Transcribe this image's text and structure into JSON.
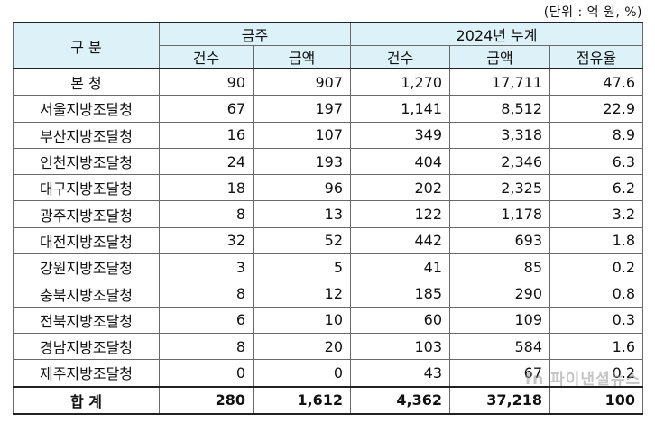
{
  "unit_note": "(단위 : 억 원, %)",
  "header": {
    "category": "구 분",
    "group_this_week": "금주",
    "group_2024_total": "2024년 누계",
    "col_count": "건수",
    "col_amount": "금액",
    "col_share": "점유율"
  },
  "rows": [
    {
      "name": "본  청",
      "week_count": "90",
      "week_amount": "907",
      "total_count": "1,270",
      "total_amount": "17,711",
      "share": "47.6"
    },
    {
      "name": "서울지방조달청",
      "week_count": "67",
      "week_amount": "197",
      "total_count": "1,141",
      "total_amount": "8,512",
      "share": "22.9"
    },
    {
      "name": "부산지방조달청",
      "week_count": "16",
      "week_amount": "107",
      "total_count": "349",
      "total_amount": "3,318",
      "share": "8.9"
    },
    {
      "name": "인천지방조달청",
      "week_count": "24",
      "week_amount": "193",
      "total_count": "404",
      "total_amount": "2,346",
      "share": "6.3"
    },
    {
      "name": "대구지방조달청",
      "week_count": "18",
      "week_amount": "96",
      "total_count": "202",
      "total_amount": "2,325",
      "share": "6.2"
    },
    {
      "name": "광주지방조달청",
      "week_count": "8",
      "week_amount": "13",
      "total_count": "122",
      "total_amount": "1,178",
      "share": "3.2"
    },
    {
      "name": "대전지방조달청",
      "week_count": "32",
      "week_amount": "52",
      "total_count": "442",
      "total_amount": "693",
      "share": "1.8"
    },
    {
      "name": "강원지방조달청",
      "week_count": "3",
      "week_amount": "5",
      "total_count": "41",
      "total_amount": "85",
      "share": "0.2"
    },
    {
      "name": "충북지방조달청",
      "week_count": "8",
      "week_amount": "12",
      "total_count": "185",
      "total_amount": "290",
      "share": "0.8"
    },
    {
      "name": "전북지방조달청",
      "week_count": "6",
      "week_amount": "10",
      "total_count": "60",
      "total_amount": "109",
      "share": "0.3"
    },
    {
      "name": "경남지방조달청",
      "week_count": "8",
      "week_amount": "20",
      "total_count": "103",
      "total_amount": "584",
      "share": "1.6"
    },
    {
      "name": "제주지방조달청",
      "week_count": "0",
      "week_amount": "0",
      "total_count": "43",
      "total_amount": "67",
      "share": "0.2"
    }
  ],
  "total": {
    "name": "합  계",
    "week_count": "280",
    "week_amount": "1,612",
    "total_count": "4,362",
    "total_amount": "37,218",
    "share": "100"
  },
  "watermark": "fn 파이낸셜뉴스"
}
